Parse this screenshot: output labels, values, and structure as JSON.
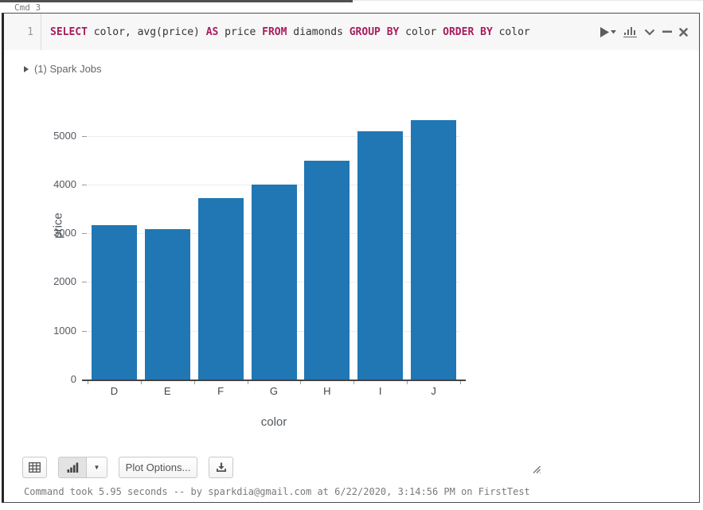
{
  "window": {
    "cmd_label": "Cmd 3"
  },
  "editor": {
    "line_number": "1",
    "sql_tokens": [
      {
        "text": "SELECT",
        "kw": true
      },
      {
        "text": " color, avg(price) ",
        "kw": false
      },
      {
        "text": "AS",
        "kw": true
      },
      {
        "text": " price ",
        "kw": false
      },
      {
        "text": "FROM",
        "kw": true
      },
      {
        "text": " diamonds ",
        "kw": false
      },
      {
        "text": "GROUP BY",
        "kw": true
      },
      {
        "text": " color ",
        "kw": false
      },
      {
        "text": "ORDER BY",
        "kw": true
      },
      {
        "text": " color",
        "kw": false
      }
    ],
    "keyword_color": "#a71d5d",
    "header_icons": [
      "run-icon",
      "chart-toggle-icon",
      "collapse-chevron-icon",
      "minimize-icon",
      "close-icon"
    ]
  },
  "spark_jobs": {
    "label": "(1) Spark Jobs",
    "collapsed": true
  },
  "chart_data": {
    "type": "bar",
    "categories": [
      "D",
      "E",
      "F",
      "G",
      "H",
      "I",
      "J"
    ],
    "values": [
      3170,
      3077,
      3725,
      3999,
      4487,
      5092,
      5324
    ],
    "title": "",
    "xlabel": "color",
    "ylabel": "price",
    "ylim": [
      0,
      5580
    ],
    "yticks": [
      0,
      1000,
      2000,
      3000,
      4000,
      5000
    ],
    "grid": true,
    "legend": "none",
    "bar_color": "#2077b4"
  },
  "toolbar": {
    "buttons": [
      "table-icon",
      "bar-chart-icon",
      "dropdown-caret",
      "plot-options",
      "download-icon"
    ],
    "plot_options_label": "Plot Options...",
    "caret_glyph": "▼"
  },
  "footer": {
    "status": "Command took 5.95 seconds -- by sparkdia@gmail.com at 6/22/2020, 3:14:56 PM on FirstTest"
  },
  "colors": {
    "bar": "#2077b4",
    "keyword": "#a71d5d",
    "code_background": "#f7f7f7",
    "cell_border": "#4d4d4d",
    "icon_gray": "#666666"
  }
}
